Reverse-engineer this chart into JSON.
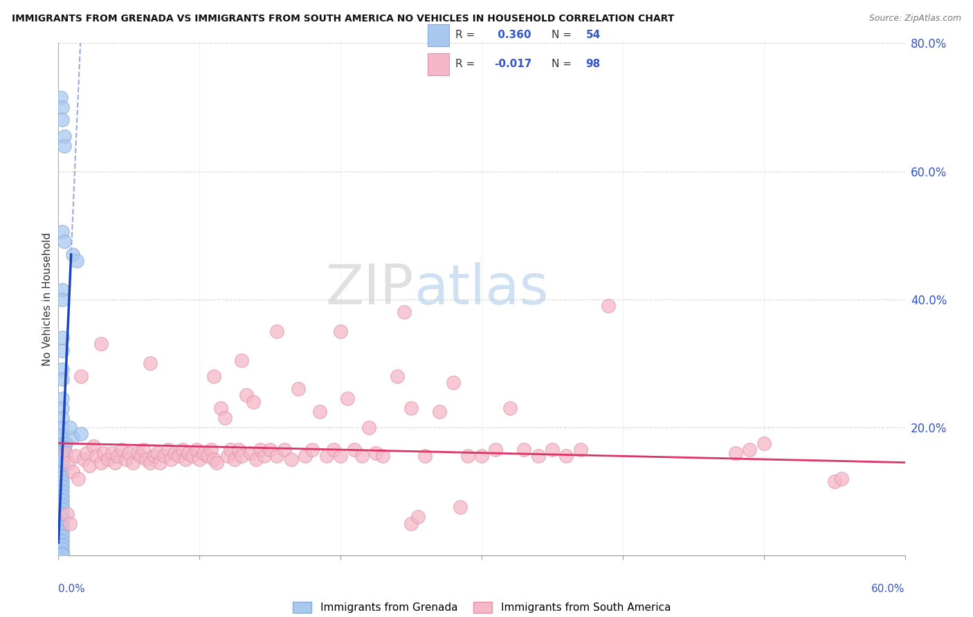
{
  "title": "IMMIGRANTS FROM GRENADA VS IMMIGRANTS FROM SOUTH AMERICA NO VEHICLES IN HOUSEHOLD CORRELATION CHART",
  "source": "Source: ZipAtlas.com",
  "ylabel": "No Vehicles in Household",
  "xmin": 0.0,
  "xmax": 0.6,
  "ymin": 0.0,
  "ymax": 0.8,
  "yticks": [
    0.0,
    0.2,
    0.4,
    0.6,
    0.8
  ],
  "ytick_labels": [
    "",
    "20.0%",
    "40.0%",
    "60.0%",
    "80.0%"
  ],
  "xtick_positions": [
    0.0,
    0.1,
    0.2,
    0.3,
    0.4,
    0.5,
    0.6
  ],
  "background_color": "#ffffff",
  "blue_color": "#a8c8f0",
  "pink_color": "#f5b8c8",
  "blue_edge_color": "#88aad8",
  "pink_edge_color": "#e090a8",
  "blue_line_color": "#1a44bb",
  "pink_line_color": "#dd3366",
  "legend_color": "#3355cc",
  "grid_color": "#cccccc",
  "watermark_zip_color": "#cccccc",
  "watermark_atlas_color": "#aaccee",
  "blue_scatter": [
    [
      0.002,
      0.715
    ],
    [
      0.003,
      0.7
    ],
    [
      0.003,
      0.68
    ],
    [
      0.004,
      0.655
    ],
    [
      0.004,
      0.64
    ],
    [
      0.003,
      0.505
    ],
    [
      0.004,
      0.49
    ],
    [
      0.01,
      0.47
    ],
    [
      0.003,
      0.415
    ],
    [
      0.003,
      0.4
    ],
    [
      0.003,
      0.34
    ],
    [
      0.003,
      0.32
    ],
    [
      0.003,
      0.29
    ],
    [
      0.003,
      0.275
    ],
    [
      0.003,
      0.245
    ],
    [
      0.003,
      0.23
    ],
    [
      0.003,
      0.215
    ],
    [
      0.003,
      0.2
    ],
    [
      0.003,
      0.188
    ],
    [
      0.01,
      0.185
    ],
    [
      0.003,
      0.175
    ],
    [
      0.003,
      0.168
    ],
    [
      0.003,
      0.16
    ],
    [
      0.003,
      0.152
    ],
    [
      0.003,
      0.145
    ],
    [
      0.003,
      0.138
    ],
    [
      0.003,
      0.13
    ],
    [
      0.003,
      0.122
    ],
    [
      0.003,
      0.115
    ],
    [
      0.003,
      0.108
    ],
    [
      0.003,
      0.1
    ],
    [
      0.003,
      0.093
    ],
    [
      0.003,
      0.086
    ],
    [
      0.003,
      0.079
    ],
    [
      0.003,
      0.072
    ],
    [
      0.003,
      0.065
    ],
    [
      0.003,
      0.058
    ],
    [
      0.003,
      0.051
    ],
    [
      0.003,
      0.044
    ],
    [
      0.003,
      0.037
    ],
    [
      0.003,
      0.03
    ],
    [
      0.003,
      0.023
    ],
    [
      0.003,
      0.016
    ],
    [
      0.003,
      0.009
    ],
    [
      0.003,
      0.003
    ],
    [
      0.003,
      0.001
    ],
    [
      0.013,
      0.46
    ],
    [
      0.008,
      0.2
    ],
    [
      0.005,
      0.175
    ],
    [
      0.004,
      0.168
    ],
    [
      0.003,
      0.162
    ],
    [
      0.003,
      0.156
    ],
    [
      0.003,
      0.15
    ],
    [
      0.016,
      0.19
    ]
  ],
  "pink_scatter": [
    [
      0.005,
      0.16
    ],
    [
      0.007,
      0.145
    ],
    [
      0.01,
      0.13
    ],
    [
      0.012,
      0.155
    ],
    [
      0.014,
      0.12
    ],
    [
      0.016,
      0.28
    ],
    [
      0.018,
      0.15
    ],
    [
      0.02,
      0.16
    ],
    [
      0.022,
      0.14
    ],
    [
      0.025,
      0.17
    ],
    [
      0.027,
      0.155
    ],
    [
      0.03,
      0.145
    ],
    [
      0.032,
      0.16
    ],
    [
      0.035,
      0.15
    ],
    [
      0.038,
      0.16
    ],
    [
      0.04,
      0.145
    ],
    [
      0.042,
      0.155
    ],
    [
      0.045,
      0.165
    ],
    [
      0.048,
      0.15
    ],
    [
      0.05,
      0.16
    ],
    [
      0.053,
      0.145
    ],
    [
      0.056,
      0.16
    ],
    [
      0.058,
      0.155
    ],
    [
      0.06,
      0.165
    ],
    [
      0.062,
      0.15
    ],
    [
      0.065,
      0.145
    ],
    [
      0.068,
      0.155
    ],
    [
      0.07,
      0.16
    ],
    [
      0.072,
      0.145
    ],
    [
      0.075,
      0.155
    ],
    [
      0.078,
      0.165
    ],
    [
      0.08,
      0.15
    ],
    [
      0.082,
      0.16
    ],
    [
      0.085,
      0.155
    ],
    [
      0.088,
      0.165
    ],
    [
      0.09,
      0.15
    ],
    [
      0.092,
      0.16
    ],
    [
      0.095,
      0.155
    ],
    [
      0.098,
      0.165
    ],
    [
      0.1,
      0.15
    ],
    [
      0.103,
      0.16
    ],
    [
      0.106,
      0.155
    ],
    [
      0.108,
      0.165
    ],
    [
      0.11,
      0.15
    ],
    [
      0.112,
      0.145
    ],
    [
      0.115,
      0.23
    ],
    [
      0.118,
      0.215
    ],
    [
      0.12,
      0.155
    ],
    [
      0.122,
      0.165
    ],
    [
      0.125,
      0.15
    ],
    [
      0.128,
      0.165
    ],
    [
      0.13,
      0.155
    ],
    [
      0.133,
      0.25
    ],
    [
      0.136,
      0.16
    ],
    [
      0.138,
      0.24
    ],
    [
      0.14,
      0.15
    ],
    [
      0.143,
      0.165
    ],
    [
      0.146,
      0.155
    ],
    [
      0.15,
      0.165
    ],
    [
      0.155,
      0.155
    ],
    [
      0.16,
      0.165
    ],
    [
      0.165,
      0.15
    ],
    [
      0.17,
      0.26
    ],
    [
      0.175,
      0.155
    ],
    [
      0.18,
      0.165
    ],
    [
      0.185,
      0.225
    ],
    [
      0.19,
      0.155
    ],
    [
      0.195,
      0.165
    ],
    [
      0.2,
      0.155
    ],
    [
      0.205,
      0.245
    ],
    [
      0.21,
      0.165
    ],
    [
      0.215,
      0.155
    ],
    [
      0.22,
      0.2
    ],
    [
      0.225,
      0.16
    ],
    [
      0.23,
      0.155
    ],
    [
      0.24,
      0.28
    ],
    [
      0.25,
      0.23
    ],
    [
      0.26,
      0.155
    ],
    [
      0.27,
      0.225
    ],
    [
      0.28,
      0.27
    ],
    [
      0.29,
      0.155
    ],
    [
      0.3,
      0.155
    ],
    [
      0.31,
      0.165
    ],
    [
      0.32,
      0.23
    ],
    [
      0.33,
      0.165
    ],
    [
      0.34,
      0.155
    ],
    [
      0.35,
      0.165
    ],
    [
      0.36,
      0.155
    ],
    [
      0.37,
      0.165
    ],
    [
      0.03,
      0.33
    ],
    [
      0.065,
      0.3
    ],
    [
      0.11,
      0.28
    ],
    [
      0.13,
      0.305
    ],
    [
      0.155,
      0.35
    ],
    [
      0.2,
      0.35
    ],
    [
      0.245,
      0.38
    ],
    [
      0.39,
      0.39
    ],
    [
      0.48,
      0.16
    ],
    [
      0.49,
      0.165
    ],
    [
      0.5,
      0.175
    ],
    [
      0.55,
      0.115
    ],
    [
      0.555,
      0.12
    ],
    [
      0.006,
      0.065
    ],
    [
      0.008,
      0.05
    ],
    [
      0.25,
      0.05
    ],
    [
      0.255,
      0.06
    ],
    [
      0.285,
      0.075
    ]
  ],
  "blue_reg_slope": 50.0,
  "blue_reg_intercept": 0.02,
  "pink_reg_slope": -0.05,
  "pink_reg_intercept": 0.175
}
